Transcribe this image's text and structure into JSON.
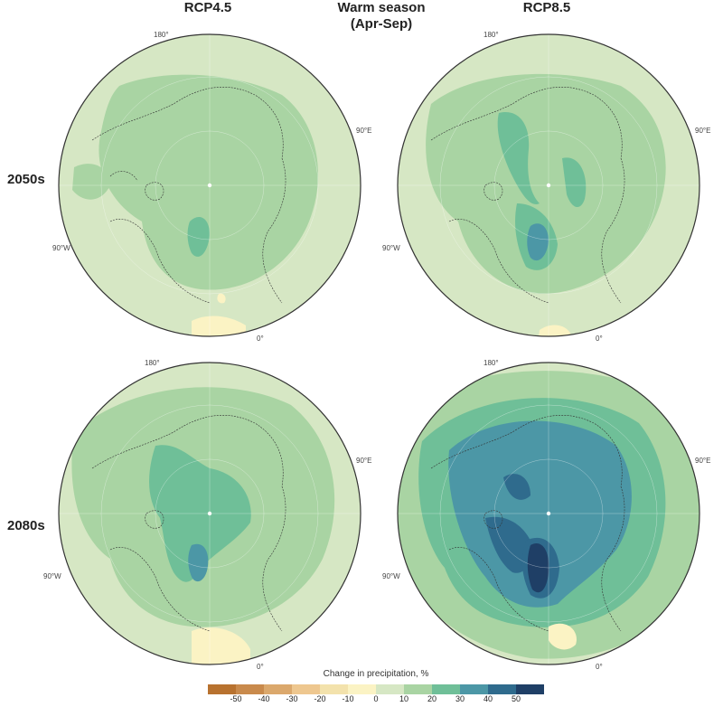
{
  "header": {
    "left": "RCP4.5",
    "center_line1": "Warm season",
    "center_line2": "(Apr-Sep)",
    "right": "RCP8.5"
  },
  "rows": [
    "2050s",
    "2080s"
  ],
  "lon_labels": {
    "top": "180°",
    "right": "90°E",
    "left": "90°W",
    "bottom": "0°"
  },
  "colors": {
    "bins": [
      "#b8722f",
      "#c98a4c",
      "#dba86c",
      "#eec78f",
      "#f3e2ac",
      "#fbf3c4",
      "#d6e7c4",
      "#a9d4a3",
      "#6fbf98",
      "#4c97a6",
      "#2f6b8d",
      "#1f3f66"
    ],
    "ocean_base": "#c6e0b5",
    "land_base": "#d6e7c4"
  },
  "panels": [
    {
      "id": "2050s-rcp45",
      "levels": [
        10,
        20
      ]
    },
    {
      "id": "2050s-rcp85",
      "levels": [
        10,
        20,
        30
      ]
    },
    {
      "id": "2080s-rcp45",
      "levels": [
        10,
        20,
        30
      ]
    },
    {
      "id": "2080s-rcp85",
      "levels": [
        10,
        20,
        30,
        40,
        50
      ]
    }
  ],
  "colorbar": {
    "title": "Change in precipitation, %",
    "ticks": [
      "-50",
      "-40",
      "-30",
      "-20",
      "-10",
      "0",
      "10",
      "20",
      "30",
      "40",
      "50"
    ]
  }
}
